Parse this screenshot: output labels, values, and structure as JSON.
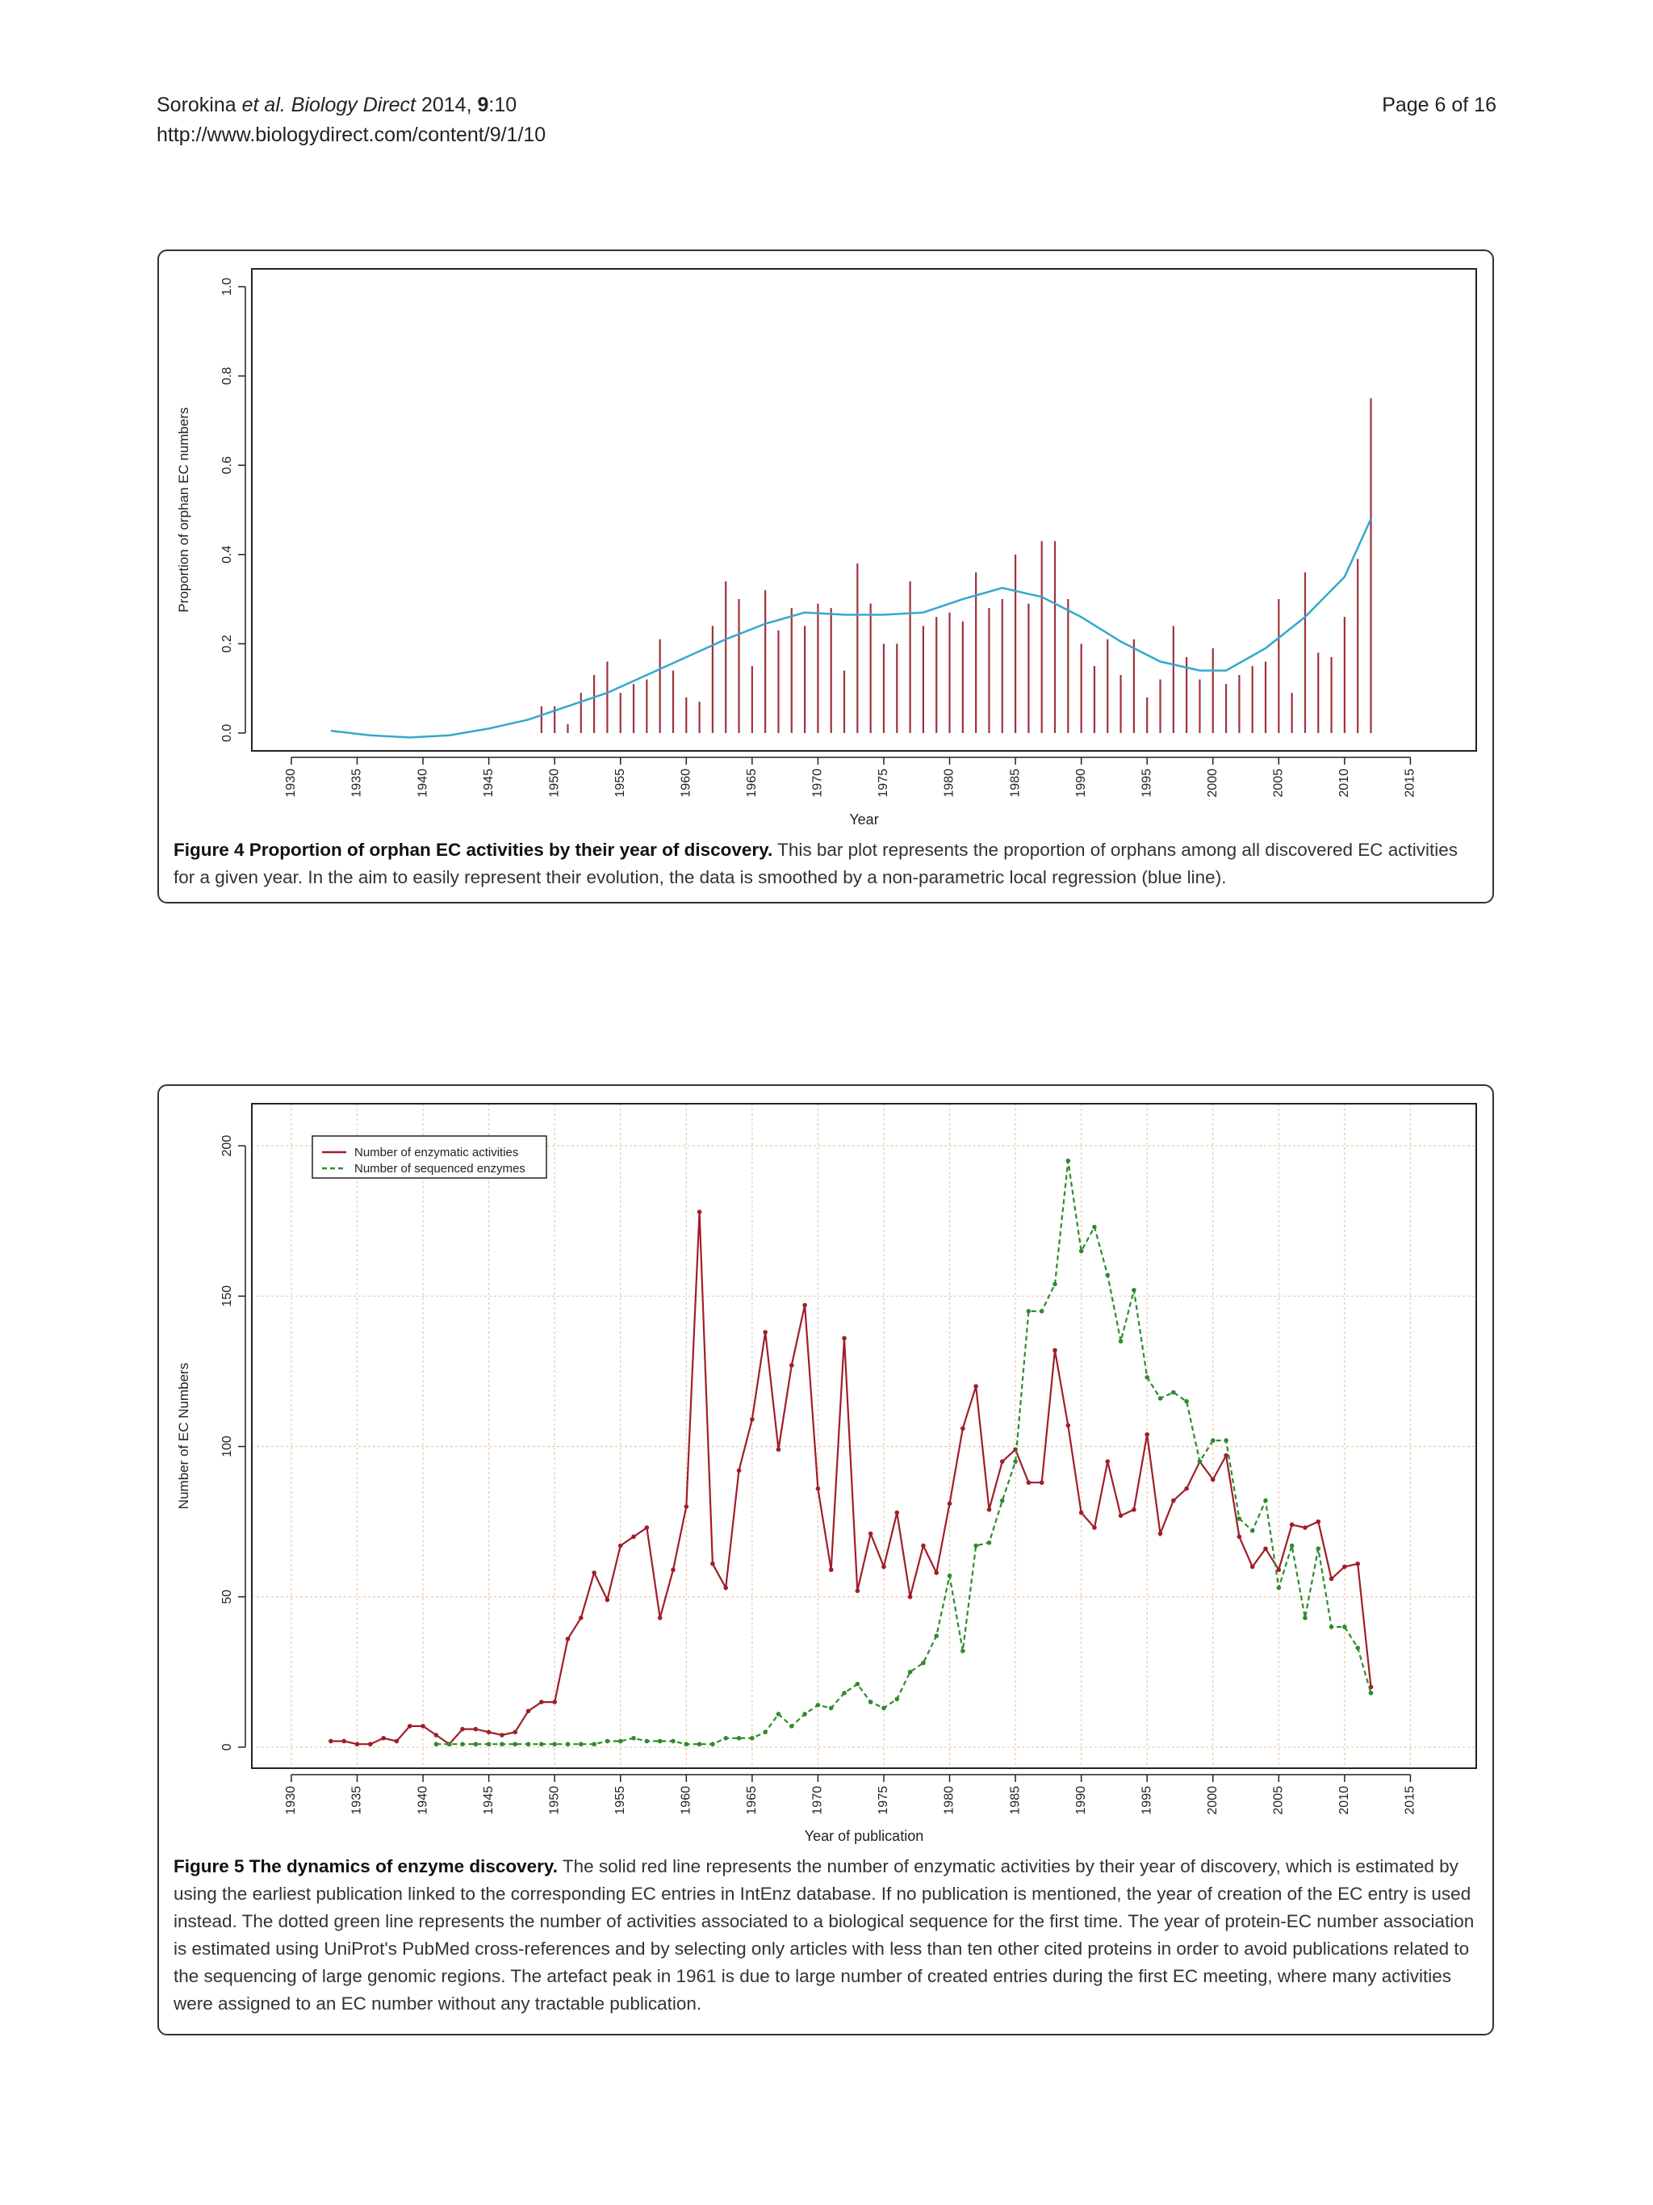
{
  "header": {
    "authors": "Sorokina",
    "etal": "et al.",
    "journal": "Biology Direct",
    "year": "2014,",
    "volume": "9",
    "article": ":10",
    "url": "http://www.biologydirect.com/content/9/1/10",
    "page": "Page 6 of 16"
  },
  "figure4": {
    "caption_label": "Figure 4 Proportion of orphan EC activities by their year of discovery.",
    "caption_text": " This bar plot represents the proportion of orphans among all discovered EC activities for a given year. In the aim to easily represent their evolution, the data is smoothed by a non-parametric local regression (blue line)."
  },
  "figure5": {
    "caption_label": "Figure 5 The dynamics of enzyme discovery.",
    "caption_text": " The solid red line represents the number of enzymatic activities by their year of discovery, which is estimated by using the earliest publication linked to the corresponding EC entries in IntEnz database. If no publication is mentioned, the year of creation of the EC entry is used instead. The dotted green line represents the number of activities associated to a biological sequence for the first time. The year of protein-EC number association is estimated using UniProt's PubMed cross-references and by selecting only articles with less than ten other cited proteins in order to avoid publications related to the sequencing of large genomic regions. The artefact peak in 1961 is due to large number of created entries during the first EC meeting, where many activities were assigned to an EC number without any tractable publication."
  },
  "chart_data": [
    {
      "type": "bar",
      "xlabel": "Year",
      "ylabel": "Proportion of orphan EC numbers",
      "xlim": [
        1927,
        2020
      ],
      "ylim": [
        -0.04,
        1.04
      ],
      "xticks": [
        1930,
        1935,
        1940,
        1945,
        1950,
        1955,
        1960,
        1965,
        1970,
        1975,
        1980,
        1985,
        1990,
        1995,
        2000,
        2005,
        2010,
        2015
      ],
      "yticks": [
        "0.0",
        "0.2",
        "0.4",
        "0.6",
        "0.8",
        "1.0"
      ],
      "bar_color": "#a0323c",
      "smooth_color": "#33a9cc",
      "x": [
        1949,
        1950,
        1951,
        1952,
        1953,
        1954,
        1955,
        1956,
        1957,
        1958,
        1959,
        1960,
        1961,
        1962,
        1963,
        1964,
        1965,
        1966,
        1967,
        1968,
        1969,
        1970,
        1971,
        1972,
        1973,
        1974,
        1975,
        1976,
        1977,
        1978,
        1979,
        1980,
        1981,
        1982,
        1983,
        1984,
        1985,
        1986,
        1987,
        1988,
        1989,
        1990,
        1991,
        1992,
        1993,
        1994,
        1995,
        1996,
        1997,
        1998,
        1999,
        2000,
        2001,
        2002,
        2003,
        2004,
        2005,
        2006,
        2007,
        2008,
        2009,
        2010,
        2011,
        2012
      ],
      "values": [
        0.06,
        0.06,
        0.02,
        0.09,
        0.13,
        0.16,
        0.09,
        0.11,
        0.12,
        0.21,
        0.14,
        0.08,
        0.07,
        0.24,
        0.34,
        0.3,
        0.15,
        0.32,
        0.23,
        0.28,
        0.24,
        0.29,
        0.28,
        0.14,
        0.38,
        0.29,
        0.2,
        0.2,
        0.34,
        0.24,
        0.26,
        0.27,
        0.25,
        0.36,
        0.28,
        0.3,
        0.4,
        0.29,
        0.43,
        0.43,
        0.3,
        0.2,
        0.15,
        0.21,
        0.13,
        0.21,
        0.08,
        0.12,
        0.24,
        0.17,
        0.12,
        0.19,
        0.11,
        0.13,
        0.15,
        0.16,
        0.3,
        0.09,
        0.36,
        0.18,
        0.17,
        0.26,
        0.39,
        0.75
      ],
      "smooth": {
        "x": [
          1933,
          1936,
          1939,
          1942,
          1945,
          1948,
          1951,
          1954,
          1957,
          1960,
          1963,
          1966,
          1969,
          1972,
          1975,
          1978,
          1981,
          1984,
          1987,
          1990,
          1993,
          1996,
          1999,
          2001,
          2004,
          2007,
          2010,
          2012
        ],
        "y": [
          0.005,
          -0.005,
          -0.01,
          -0.005,
          0.01,
          0.03,
          0.06,
          0.09,
          0.13,
          0.17,
          0.21,
          0.245,
          0.27,
          0.265,
          0.265,
          0.27,
          0.3,
          0.325,
          0.305,
          0.26,
          0.205,
          0.16,
          0.14,
          0.14,
          0.19,
          0.26,
          0.35,
          0.48
        ]
      }
    },
    {
      "type": "line",
      "xlabel": "Year of publication",
      "ylabel": "Number of EC Numbers",
      "xlim": [
        1927,
        2020
      ],
      "ylim": [
        -7,
        214
      ],
      "xticks": [
        1930,
        1935,
        1940,
        1945,
        1950,
        1955,
        1960,
        1965,
        1970,
        1975,
        1980,
        1985,
        1990,
        1995,
        2000,
        2005,
        2010,
        2015
      ],
      "yticks": [
        "0",
        "50",
        "100",
        "150",
        "200"
      ],
      "grid": true,
      "legend_position": "top-left",
      "series": [
        {
          "name": "Number of enzymatic activities",
          "color": "#a01e28",
          "style": "solid",
          "x": [
            1933,
            1934,
            1935,
            1936,
            1937,
            1938,
            1939,
            1940,
            1941,
            1942,
            1943,
            1944,
            1945,
            1946,
            1947,
            1948,
            1949,
            1950,
            1951,
            1952,
            1953,
            1954,
            1955,
            1956,
            1957,
            1958,
            1959,
            1960,
            1961,
            1962,
            1963,
            1964,
            1965,
            1966,
            1967,
            1968,
            1969,
            1970,
            1971,
            1972,
            1973,
            1974,
            1975,
            1976,
            1977,
            1978,
            1979,
            1980,
            1981,
            1982,
            1983,
            1984,
            1985,
            1986,
            1987,
            1988,
            1989,
            1990,
            1991,
            1992,
            1993,
            1994,
            1995,
            1996,
            1997,
            1998,
            1999,
            2000,
            2001,
            2002,
            2003,
            2004,
            2005,
            2006,
            2007,
            2008,
            2009,
            2010,
            2011,
            2012
          ],
          "y": [
            2,
            2,
            1,
            1,
            3,
            2,
            7,
            7,
            4,
            1,
            6,
            6,
            5,
            4,
            5,
            12,
            15,
            15,
            36,
            43,
            58,
            49,
            67,
            70,
            73,
            43,
            59,
            80,
            178,
            61,
            53,
            92,
            109,
            138,
            99,
            127,
            147,
            86,
            59,
            136,
            52,
            71,
            60,
            78,
            50,
            67,
            58,
            81,
            106,
            120,
            79,
            95,
            99,
            88,
            88,
            132,
            107,
            78,
            73,
            95,
            77,
            79,
            104,
            71,
            82,
            86,
            95,
            89,
            97,
            70,
            60,
            66,
            59,
            74,
            73,
            75,
            56,
            60,
            61,
            20
          ]
        },
        {
          "name": "Number of sequenced enzymes",
          "color": "#2e8b2e",
          "style": "dashed",
          "x": [
            1941,
            1942,
            1943,
            1944,
            1945,
            1946,
            1947,
            1948,
            1949,
            1950,
            1951,
            1952,
            1953,
            1954,
            1955,
            1956,
            1957,
            1958,
            1959,
            1960,
            1961,
            1962,
            1963,
            1964,
            1965,
            1966,
            1967,
            1968,
            1969,
            1970,
            1971,
            1972,
            1973,
            1974,
            1975,
            1976,
            1977,
            1978,
            1979,
            1980,
            1981,
            1982,
            1983,
            1984,
            1985,
            1986,
            1987,
            1988,
            1989,
            1990,
            1991,
            1992,
            1993,
            1994,
            1995,
            1996,
            1997,
            1998,
            1999,
            2000,
            2001,
            2002,
            2003,
            2004,
            2005,
            2006,
            2007,
            2008,
            2009,
            2010,
            2011,
            2012
          ],
          "y": [
            1,
            1,
            1,
            1,
            1,
            1,
            1,
            1,
            1,
            1,
            1,
            1,
            1,
            2,
            2,
            3,
            2,
            2,
            2,
            1,
            1,
            1,
            3,
            3,
            3,
            5,
            11,
            7,
            11,
            14,
            13,
            18,
            21,
            15,
            13,
            16,
            25,
            28,
            37,
            57,
            32,
            67,
            68,
            82,
            95,
            145,
            145,
            154,
            195,
            165,
            173,
            157,
            135,
            152,
            123,
            116,
            118,
            115,
            95,
            102,
            102,
            76,
            72,
            82,
            53,
            67,
            43,
            66,
            40,
            40,
            33,
            18
          ]
        }
      ]
    }
  ]
}
